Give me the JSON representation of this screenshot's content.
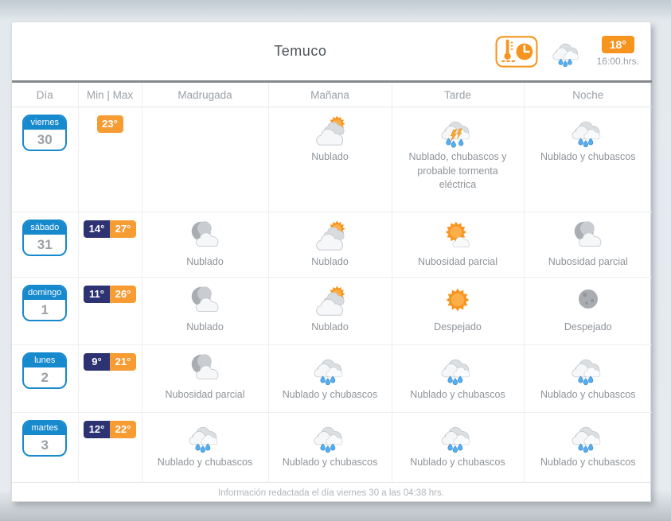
{
  "header": {
    "title": "Temuco",
    "current_temp": "18°",
    "current_time": "16:00.hrs.",
    "measure_icon": "thermo-clock",
    "condition_icon": "rain"
  },
  "colors": {
    "accent_orange": "#f7941e",
    "max_orange": "#f79b33",
    "min_navy": "#2d3273",
    "day_blue": "#1789cd",
    "text_gray": "#8f9499"
  },
  "table": {
    "columns": [
      "Día",
      "Min | Max",
      "Madrugada",
      "Mañana",
      "Tarde",
      "Noche"
    ],
    "rows": [
      {
        "day": {
          "name": "viernes",
          "number": "30"
        },
        "min": "",
        "max": "23°",
        "cells": [
          {
            "icon": "",
            "label": ""
          },
          {
            "icon": "sun-cloud",
            "label": "Nublado"
          },
          {
            "icon": "storm",
            "label": "Nublado, chubascos y probable tormenta eléctrica"
          },
          {
            "icon": "rain",
            "label": "Nublado y chubascos"
          }
        ]
      },
      {
        "day": {
          "name": "sábado",
          "number": "31"
        },
        "min": "14°",
        "max": "27°",
        "cells": [
          {
            "icon": "moon-cloud",
            "label": "Nublado"
          },
          {
            "icon": "sun-cloud",
            "label": "Nublado"
          },
          {
            "icon": "partly-sunny",
            "label": "Nubosidad parcial"
          },
          {
            "icon": "moon-cloud",
            "label": "Nubosidad parcial"
          }
        ]
      },
      {
        "day": {
          "name": "domingo",
          "number": "1"
        },
        "min": "11°",
        "max": "26°",
        "cells": [
          {
            "icon": "moon-cloud",
            "label": "Nublado"
          },
          {
            "icon": "sun-cloud",
            "label": "Nublado"
          },
          {
            "icon": "sun",
            "label": "Despejado"
          },
          {
            "icon": "moon",
            "label": "Despejado"
          }
        ]
      },
      {
        "day": {
          "name": "lunes",
          "number": "2"
        },
        "min": "9°",
        "max": "21°",
        "cells": [
          {
            "icon": "moon-cloud",
            "label": "Nubosidad parcial"
          },
          {
            "icon": "rain",
            "label": "Nublado y chubascos"
          },
          {
            "icon": "rain",
            "label": "Nublado y chubascos"
          },
          {
            "icon": "rain",
            "label": "Nublado y chubascos"
          }
        ]
      },
      {
        "day": {
          "name": "martes",
          "number": "3"
        },
        "min": "12°",
        "max": "22°",
        "cells": [
          {
            "icon": "rain",
            "label": "Nublado y chubascos"
          },
          {
            "icon": "rain",
            "label": "Nublado y chubascos"
          },
          {
            "icon": "rain",
            "label": "Nublado y chubascos"
          },
          {
            "icon": "rain",
            "label": "Nublado y chubascos"
          }
        ]
      }
    ]
  },
  "footer": {
    "note": "Información redactada el día viernes 30 a las 04:38 hrs."
  }
}
